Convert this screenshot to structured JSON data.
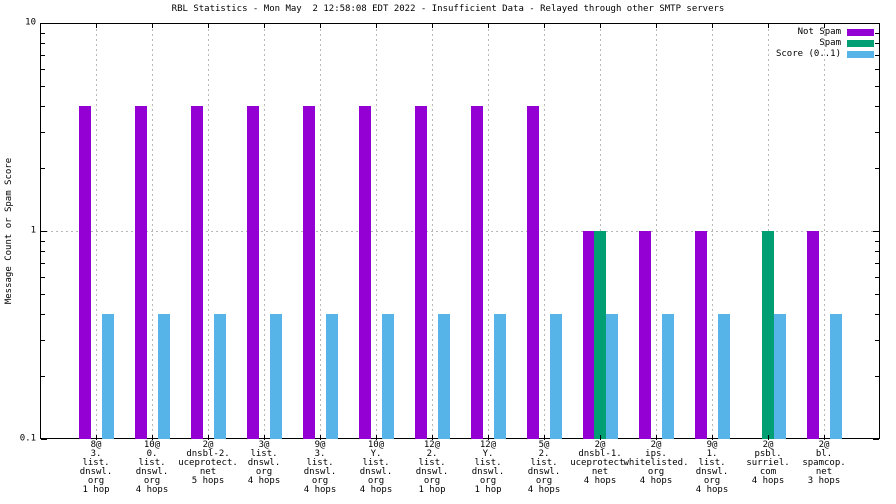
{
  "title": "RBL Statistics - Mon May  2 12:58:08 EDT 2022 - Insufficient Data - Relayed through other SMTP servers",
  "chart_data": {
    "type": "bar",
    "title": "RBL Statistics - Mon May  2 12:58:08 EDT 2022 - Insufficient Data - Relayed through other SMTP servers",
    "ylabel": "Message Count or Spam Score",
    "xlabel": "",
    "yscale": "log",
    "ylim": [
      0.1,
      10
    ],
    "yticks": [
      {
        "value": 0.1,
        "label": "0.1"
      },
      {
        "value": 1,
        "label": "1"
      },
      {
        "value": 10,
        "label": "10"
      }
    ],
    "grid": {
      "horizontal_at": [
        1
      ],
      "vertical": "every-category-center",
      "color": "#b8b8b8"
    },
    "legend_position": "top-right-inside",
    "colors": {
      "border": "#000000",
      "text": "#000000"
    },
    "categories": [
      {
        "label_lines": [
          "8@",
          "3.",
          "list.",
          "dnswl.",
          "org",
          "1 hop"
        ]
      },
      {
        "label_lines": [
          "10@",
          "0.",
          "list.",
          "dnswl.",
          "org",
          "4 hops"
        ]
      },
      {
        "label_lines": [
          "2@",
          "dnsbl-2.",
          "uceprotect.",
          "net",
          "5 hops"
        ]
      },
      {
        "label_lines": [
          "3@",
          "list.",
          "dnswl.",
          "org",
          "4 hops"
        ]
      },
      {
        "label_lines": [
          "9@",
          "3.",
          "list.",
          "dnswl.",
          "org",
          "4 hops"
        ]
      },
      {
        "label_lines": [
          "10@",
          "Y.",
          "list.",
          "dnswl.",
          "org",
          "4 hops"
        ]
      },
      {
        "label_lines": [
          "12@",
          "2.",
          "list.",
          "dnswl.",
          "org",
          "1 hop"
        ]
      },
      {
        "label_lines": [
          "12@",
          "Y.",
          "list.",
          "dnswl.",
          "org",
          "1 hop"
        ]
      },
      {
        "label_lines": [
          "5@",
          "2.",
          "list.",
          "dnswl.",
          "org",
          "4 hops"
        ]
      },
      {
        "label_lines": [
          "2@",
          "dnsbl-1.",
          "uceprotect.",
          "net",
          "4 hops"
        ]
      },
      {
        "label_lines": [
          "2@",
          "ips.",
          "whitelisted.",
          "org",
          "4 hops"
        ]
      },
      {
        "label_lines": [
          "9@",
          "1.",
          "list.",
          "dnswl.",
          "org",
          "4 hops"
        ]
      },
      {
        "label_lines": [
          "2@",
          "psbl.",
          "surriel.",
          "com",
          "4 hops"
        ]
      },
      {
        "label_lines": [
          "2@",
          "bl.",
          "spamcop.",
          "net",
          "3 hops"
        ]
      }
    ],
    "series": [
      {
        "name": "Not Spam",
        "color": "#9400d3",
        "values": [
          4,
          4,
          4,
          4,
          4,
          4,
          4,
          4,
          4,
          1,
          1,
          1,
          0,
          1
        ]
      },
      {
        "name": "Spam",
        "color": "#009e73",
        "values": [
          0,
          0,
          0,
          0,
          0,
          0,
          0,
          0,
          0,
          1,
          0,
          0,
          1,
          0
        ]
      },
      {
        "name": "Score (0..1)",
        "color": "#56b4e9",
        "values": [
          0.4,
          0.4,
          0.4,
          0.4,
          0.4,
          0.4,
          0.4,
          0.4,
          0.4,
          0.4,
          0.4,
          0.4,
          0.4,
          0.4
        ]
      }
    ]
  }
}
